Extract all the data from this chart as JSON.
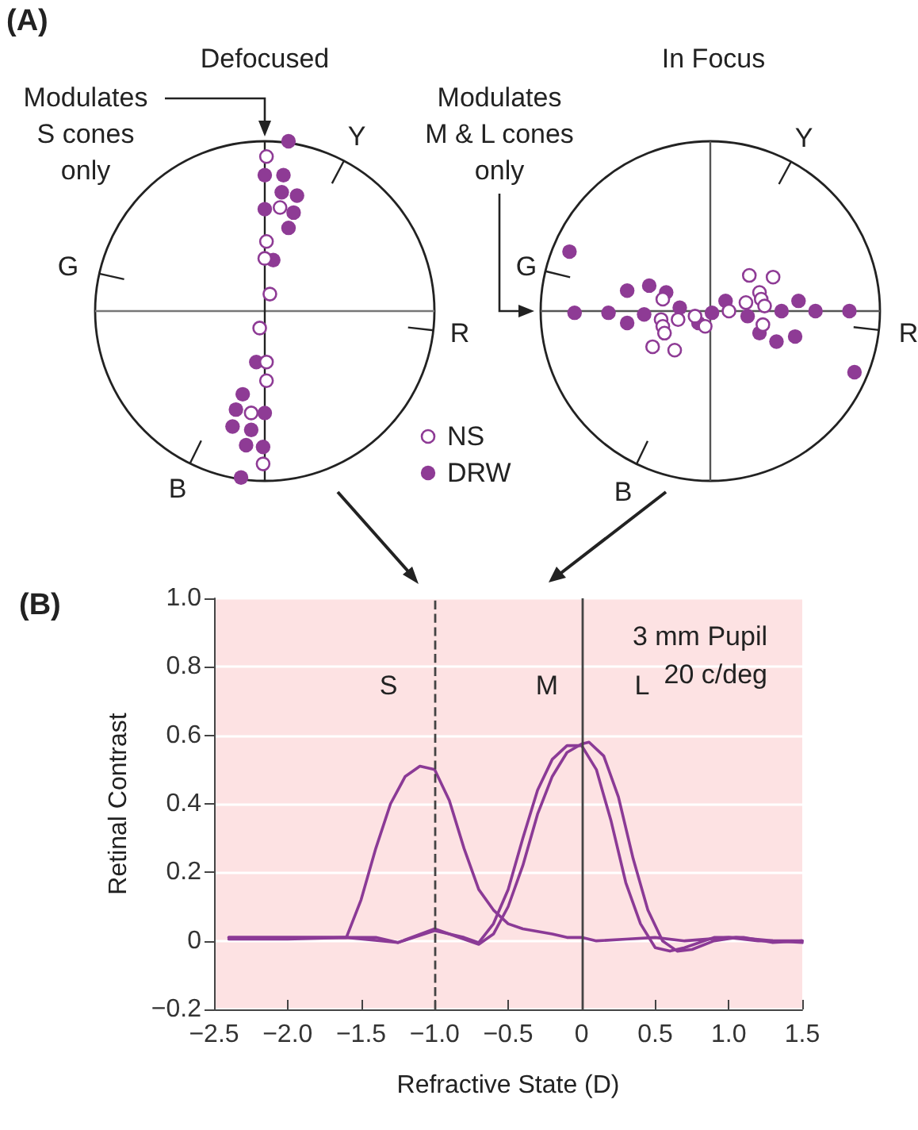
{
  "chart_data": [
    {
      "type": "other",
      "title": "Defocused",
      "annotations": [
        "(A)",
        "Modulates\nS cones\nonly",
        "Y",
        "G",
        "R",
        "B",
        "NS",
        "DRW"
      ]
    },
    {
      "type": "other",
      "title": "In Focus",
      "annotations": [
        "Modulates\nM & L cones\nonly",
        "Y",
        "G",
        "R",
        "B"
      ]
    },
    {
      "type": "line",
      "xlabel": "Refractive State (D)",
      "ylabel": "Retinal Contrast",
      "xlim": [
        -2.5,
        1.5
      ],
      "ylim": [
        -0.2,
        1.0
      ],
      "xticks": [
        {
          "value": -2.5,
          "label": "−2.5"
        },
        {
          "value": -2,
          "label": "−2.0"
        },
        {
          "value": -1.5,
          "label": "−1.5"
        },
        {
          "value": -1,
          "label": "−1.0"
        },
        {
          "value": -0.5,
          "label": "−0.5"
        },
        0,
        0.5,
        {
          "value": 1,
          "label": "1.0"
        },
        1.5
      ],
      "yticks": [
        {
          "value": -0.2,
          "label": "−0.2"
        },
        0,
        0.2,
        0.4,
        0.6,
        0.8,
        {
          "value": 1,
          "label": "1.0"
        }
      ],
      "grid": "y",
      "annotations": [
        "(B)",
        "3 mm Pupil\n20 c/deg",
        "S",
        "M",
        "L"
      ],
      "ref_lines": [
        {
          "axis": "x",
          "value": -1,
          "color": "#444444",
          "line_style": "dashed"
        },
        {
          "axis": "x",
          "value": 0,
          "color": "#444444"
        }
      ],
      "series": [
        {
          "color": "#8b3a96",
          "x": [
            -2.4,
            -2.0,
            -1.8,
            -1.6,
            -1.5,
            -1.4,
            -1.3,
            -1.2,
            -1.1,
            -1.0,
            -0.9,
            -0.8,
            -0.7,
            -0.6,
            -0.5,
            -0.4,
            -0.2,
            -0.1,
            0,
            0.1,
            0.3,
            0.5,
            0.7,
            1.0,
            1.2,
            1.5
          ],
          "values": [
            0.01,
            0.01,
            0.01,
            0.01,
            0.12,
            0.27,
            0.4,
            0.48,
            0.51,
            0.5,
            0.41,
            0.27,
            0.15,
            0.09,
            0.05,
            0.035,
            0.02,
            0.01,
            0.01,
            0,
            0.005,
            0.01,
            0,
            0.01,
            0,
            0
          ]
        },
        {
          "color": "#8b3a96",
          "x": [
            -2.4,
            -2.0,
            -1.7,
            -1.4,
            -1.25,
            -1.0,
            -0.8,
            -0.7,
            -0.6,
            -0.5,
            -0.4,
            -0.3,
            -0.2,
            -0.1,
            0,
            0.1,
            0.2,
            0.3,
            0.4,
            0.5,
            0.6,
            0.7,
            0.9,
            1.1,
            1.3,
            1.5
          ],
          "values": [
            0.01,
            0.01,
            0.01,
            0.01,
            -0.005,
            0.03,
            0.01,
            -0.005,
            0.05,
            0.15,
            0.3,
            0.44,
            0.53,
            0.57,
            0.57,
            0.5,
            0.35,
            0.17,
            0.05,
            -0.02,
            -0.03,
            -0.02,
            0.01,
            0.01,
            -0.005,
            0
          ]
        },
        {
          "color": "#8b3a96",
          "x": [
            -2.4,
            -2.0,
            -1.6,
            -1.25,
            -1.0,
            -0.7,
            -0.6,
            -0.5,
            -0.4,
            -0.3,
            -0.2,
            -0.1,
            0,
            0.05,
            0.15,
            0.25,
            0.35,
            0.45,
            0.55,
            0.65,
            0.75,
            0.9,
            1.05,
            1.3,
            1.5
          ],
          "values": [
            0.005,
            0.005,
            0.01,
            -0.005,
            0.035,
            -0.01,
            0.02,
            0.1,
            0.22,
            0.37,
            0.48,
            0.55,
            0.575,
            0.58,
            0.54,
            0.42,
            0.24,
            0.09,
            0,
            -0.03,
            -0.025,
            0,
            0.01,
            0,
            -0.005
          ]
        }
      ]
    }
  ]
}
